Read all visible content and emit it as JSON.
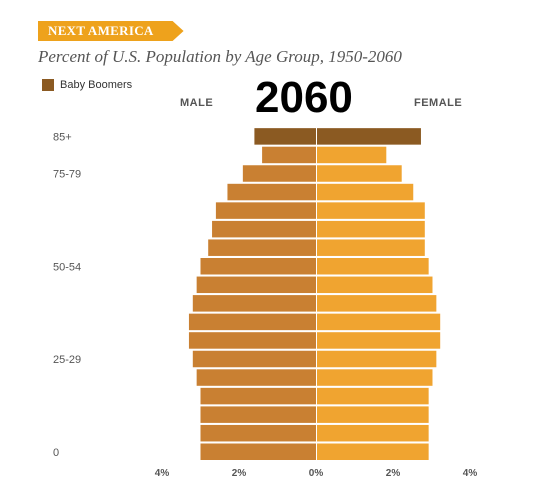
{
  "banner": "NEXT AMERICA",
  "subtitle": "Percent of U.S. Population by Age Group, 1950-2060",
  "year": "2060",
  "colors": {
    "male": "#c98032",
    "female": "#f0a430",
    "boomer": "#8b5a22",
    "banner": "#eea21c"
  },
  "chart_data": {
    "type": "bar",
    "orientation": "horizontal-population-pyramid",
    "title": "Percent of U.S. Population by Age Group, 1950-2060",
    "year": "2060",
    "left_label": "MALE",
    "right_label": "FEMALE",
    "legend": [
      {
        "name": "Baby Boomers",
        "color": "#8b5a22"
      }
    ],
    "legend_position": "top-left",
    "xlim": [
      -4,
      4
    ],
    "x_ticks": [
      "4%",
      "2%",
      "0%",
      "2%",
      "4%"
    ],
    "x_tick_values": [
      -4,
      -2,
      0,
      2,
      4
    ],
    "y_tick_labels": [
      {
        "label": "85+",
        "index": 17
      },
      {
        "label": "75-79",
        "index": 15
      },
      {
        "label": "50-54",
        "index": 10
      },
      {
        "label": "25-29",
        "index": 5
      },
      {
        "label": "0",
        "index": 0
      }
    ],
    "grid": false,
    "series": [
      {
        "name": "Male",
        "values": [
          3.0,
          3.0,
          3.0,
          3.0,
          3.1,
          3.2,
          3.3,
          3.3,
          3.2,
          3.1,
          3.0,
          2.8,
          2.7,
          2.6,
          2.3,
          1.9,
          1.4,
          1.6
        ]
      },
      {
        "name": "Female",
        "values": [
          2.9,
          2.9,
          2.9,
          2.9,
          3.0,
          3.1,
          3.2,
          3.2,
          3.1,
          3.0,
          2.9,
          2.8,
          2.8,
          2.8,
          2.5,
          2.2,
          1.8,
          2.7
        ]
      }
    ],
    "boomer_index": 17
  }
}
